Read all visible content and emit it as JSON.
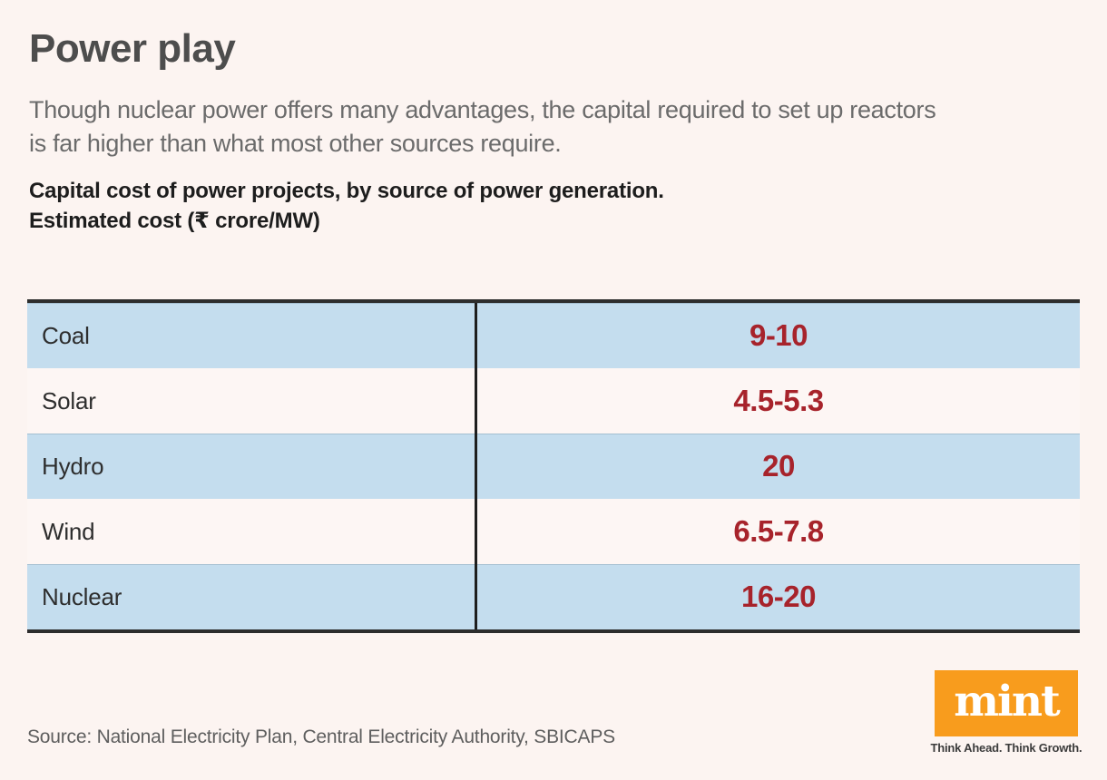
{
  "colors": {
    "background": "#FCF4F1",
    "row_blue": "#C4DDEE",
    "row_light": "#FDF6F4",
    "value_red": "#A7232B",
    "border_dark": "#2D2D2D",
    "divider_dark": "#1E1E1E",
    "logo_orange": "#F89C1D",
    "title_gray": "#4D4D4D",
    "description_gray": "#6B6B6B"
  },
  "header": {
    "title": "Power play",
    "description_lines": [
      "Though nuclear power offers many advantages, the capital required to set up reactors",
      "is far higher than what most other sources require."
    ],
    "caption_lines": [
      "Capital cost of power projects, by source of power generation.",
      "Estimated cost (₹ crore/MW)"
    ]
  },
  "chart_data": {
    "type": "table",
    "title": "Power play",
    "subtitle": "Though nuclear power offers many advantages, the capital required to set up reactors is far higher than what most other sources require.",
    "caption": "Capital cost of power projects, by source of power generation.",
    "unit": "Estimated cost (₹ crore/MW)",
    "categories": [
      "Coal",
      "Solar",
      "Hydro",
      "Wind",
      "Nuclear"
    ],
    "values": [
      "9-10",
      "4.5-5.3",
      "20",
      "6.5-7.8",
      "16-20"
    ],
    "numeric_ranges": [
      [
        9,
        10
      ],
      [
        4.5,
        5.3
      ],
      [
        20,
        20
      ],
      [
        6.5,
        7.8
      ],
      [
        16,
        20
      ]
    ],
    "source": "Source: National Electricity Plan, Central Electricity Authority, SBICAPS"
  },
  "footer": {
    "source": "Source: National Electricity Plan, Central Electricity Authority, SBICAPS",
    "logo_text": "mint",
    "tagline": "Think Ahead. Think Growth."
  }
}
